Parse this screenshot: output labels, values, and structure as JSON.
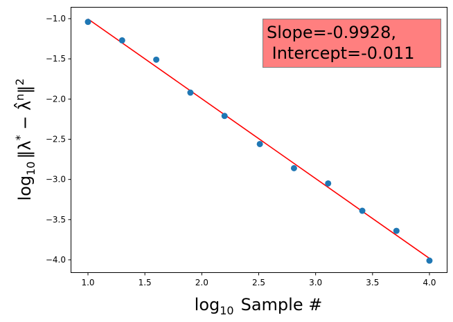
{
  "chart_data": {
    "type": "scatter",
    "title": "",
    "xlabel": "log10 Sample #",
    "ylabel": "log10 ||λ* − λ̂ⁿ||²",
    "xlim": [
      0.85,
      4.15
    ],
    "ylim": [
      -4.15,
      -0.86
    ],
    "grid": false,
    "xticks": [
      1.0,
      1.5,
      2.0,
      2.5,
      3.0,
      3.5,
      4.0
    ],
    "xtick_labels": [
      "1.0",
      "1.5",
      "2.0",
      "2.5",
      "3.0",
      "3.5",
      "4.0"
    ],
    "yticks": [
      -1.0,
      -1.5,
      -2.0,
      -2.5,
      -3.0,
      -3.5,
      -4.0
    ],
    "ytick_labels": [
      "−1.0",
      "−1.5",
      "−2.0",
      "−2.5",
      "−3.0",
      "−3.5",
      "−4.0"
    ],
    "series": [
      {
        "name": "data",
        "kind": "scatter",
        "color": "#1f77b4",
        "x": [
          1.0,
          1.3,
          1.6,
          1.9,
          2.2,
          2.51,
          2.81,
          3.11,
          3.41,
          3.71,
          4.0
        ],
        "y": [
          -1.04,
          -1.27,
          -1.51,
          -1.92,
          -2.21,
          -2.56,
          -2.86,
          -3.05,
          -3.39,
          -3.64,
          -4.01
        ]
      },
      {
        "name": "fit",
        "kind": "line",
        "color": "#ff0000",
        "x": [
          1.0,
          4.0
        ],
        "y": [
          -1.0038,
          -3.9822
        ]
      }
    ],
    "annotations": [
      {
        "text": "Slope=-0.9928,\n Intercept=-0.011",
        "position": "top-right",
        "facecolor": "#ff0000",
        "alpha": 0.5
      }
    ],
    "fit": {
      "slope": -0.9928,
      "intercept": -0.011
    }
  },
  "annotation": {
    "text": "Slope=-0.9928,\n Intercept=-0.011"
  },
  "labels": {
    "x_prefix": "log",
    "x_sub": "10",
    "x_rest": "Sample #",
    "y_prefix": "log",
    "y_sub": "10"
  },
  "colors": {
    "scatter": "#1f77b4",
    "fit_line": "#ff0000",
    "annotation_bg": "#ff8080"
  }
}
